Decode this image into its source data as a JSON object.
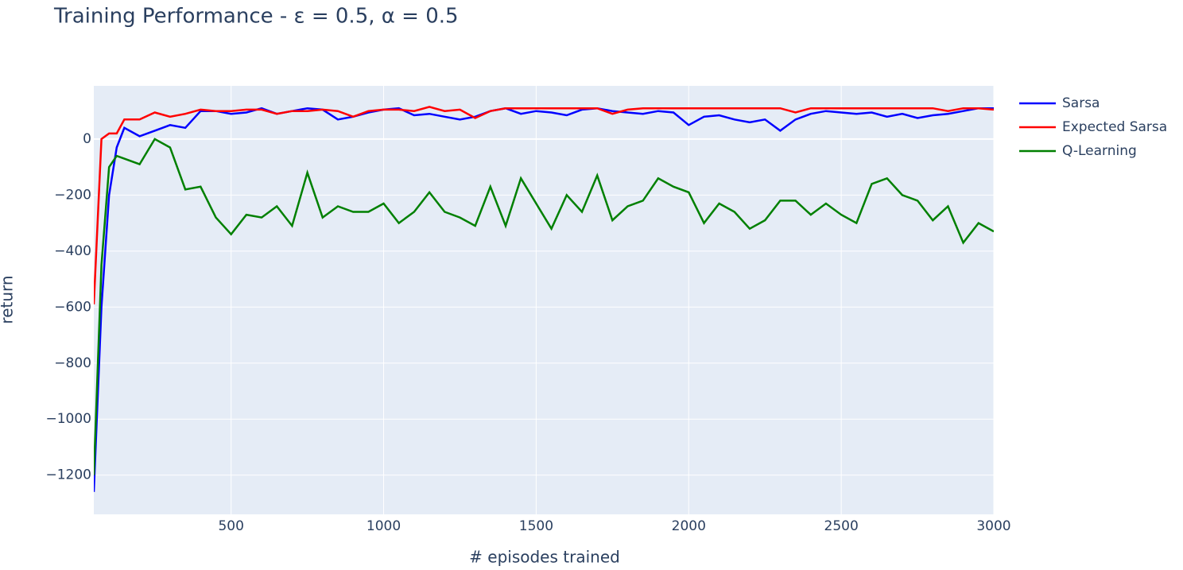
{
  "chart_data": {
    "type": "line",
    "title": "Training Performance - ε = 0.5, α = 0.5",
    "x_label": "# episodes trained",
    "y_label": "return",
    "x": [
      50,
      75,
      100,
      125,
      150,
      200,
      250,
      300,
      350,
      400,
      450,
      500,
      550,
      600,
      650,
      700,
      750,
      800,
      850,
      900,
      950,
      1000,
      1050,
      1100,
      1150,
      1200,
      1250,
      1300,
      1350,
      1400,
      1450,
      1500,
      1550,
      1600,
      1650,
      1700,
      1750,
      1800,
      1850,
      1900,
      1950,
      2000,
      2050,
      2100,
      2150,
      2200,
      2250,
      2300,
      2350,
      2400,
      2450,
      2500,
      2550,
      2600,
      2650,
      2700,
      2750,
      2800,
      2850,
      2900,
      2950,
      3000
    ],
    "series": [
      {
        "name": "Sarsa",
        "color": "#0000ff",
        "values": [
          -1260,
          -600,
          -200,
          -30,
          40,
          10,
          30,
          50,
          40,
          100,
          100,
          90,
          95,
          110,
          90,
          100,
          110,
          105,
          70,
          80,
          95,
          105,
          110,
          85,
          90,
          80,
          70,
          80,
          100,
          110,
          90,
          100,
          95,
          85,
          105,
          110,
          100,
          95,
          90,
          100,
          95,
          50,
          80,
          85,
          70,
          60,
          70,
          30,
          70,
          90,
          100,
          95,
          90,
          95,
          80,
          90,
          75,
          85,
          90,
          100,
          110,
          110
        ]
      },
      {
        "name": "Expected Sarsa",
        "color": "#ff0000",
        "values": [
          -590,
          0,
          20,
          20,
          70,
          70,
          95,
          80,
          90,
          105,
          100,
          100,
          105,
          105,
          90,
          100,
          100,
          105,
          100,
          80,
          100,
          105,
          105,
          100,
          115,
          100,
          105,
          75,
          100,
          110,
          110,
          110,
          110,
          110,
          110,
          110,
          90,
          105,
          110,
          110,
          110,
          110,
          110,
          110,
          110,
          110,
          110,
          110,
          95,
          110,
          110,
          110,
          110,
          110,
          110,
          110,
          110,
          110,
          100,
          110,
          110,
          105
        ]
      },
      {
        "name": "Q-Learning",
        "color": "#008000",
        "values": [
          -1200,
          -450,
          -100,
          -60,
          -70,
          -90,
          0,
          -30,
          -180,
          -170,
          -280,
          -340,
          -270,
          -280,
          -240,
          -310,
          -120,
          -280,
          -240,
          -260,
          -260,
          -230,
          -300,
          -260,
          -190,
          -260,
          -280,
          -310,
          -170,
          -310,
          -140,
          -230,
          -320,
          -200,
          -260,
          -130,
          -290,
          -240,
          -220,
          -140,
          -170,
          -190,
          -300,
          -230,
          -260,
          -320,
          -290,
          -220,
          -220,
          -270,
          -230,
          -270,
          -300,
          -160,
          -140,
          -200,
          -220,
          -290,
          -240,
          -370,
          -300,
          -330
        ]
      }
    ],
    "xlim": [
      50,
      3000
    ],
    "ylim": [
      -1340,
      190
    ],
    "xticks": [
      500,
      1000,
      1500,
      2000,
      2500,
      3000
    ],
    "yticks": [
      0,
      {
        "value": -200,
        "label": "−200"
      },
      {
        "value": -400,
        "label": "−400"
      },
      {
        "value": -600,
        "label": "−600"
      },
      {
        "value": -800,
        "label": "−800"
      },
      {
        "value": -1000,
        "label": "−1000"
      },
      {
        "value": -1200,
        "label": "−1200"
      }
    ],
    "grid": true
  }
}
